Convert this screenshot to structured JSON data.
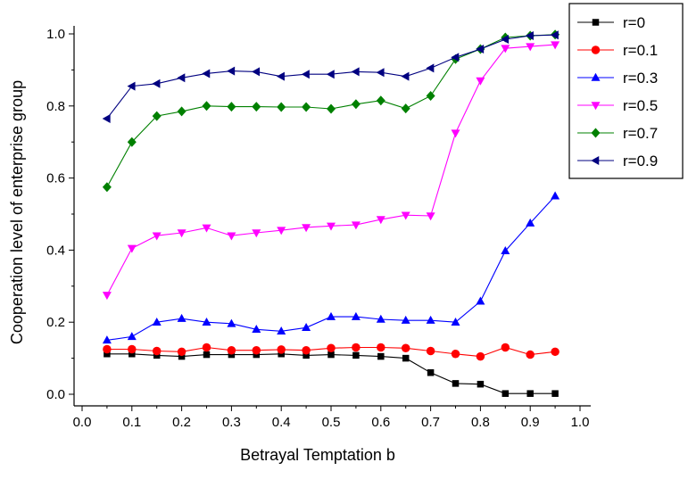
{
  "chart_data": {
    "type": "line",
    "title": "",
    "xlabel": "Betrayal Temptation b",
    "ylabel": "Cooperation level of enterprise group",
    "xlim": [
      0.0,
      1.0
    ],
    "ylim": [
      0.0,
      1.0
    ],
    "xticks": [
      "0.0",
      "0.1",
      "0.2",
      "0.3",
      "0.4",
      "0.5",
      "0.6",
      "0.7",
      "0.8",
      "0.9",
      "1.0"
    ],
    "yticks": [
      "0.0",
      "0.2",
      "0.4",
      "0.6",
      "0.8",
      "1.0"
    ],
    "grid": false,
    "legend_position": "top-right",
    "x": [
      0.05,
      0.1,
      0.15,
      0.2,
      0.25,
      0.3,
      0.35,
      0.4,
      0.45,
      0.5,
      0.55,
      0.6,
      0.65,
      0.7,
      0.75,
      0.8,
      0.85,
      0.9,
      0.95
    ],
    "series": [
      {
        "name": "r=0",
        "color": "#000000",
        "marker": "square",
        "values": [
          0.112,
          0.112,
          0.108,
          0.105,
          0.11,
          0.11,
          0.11,
          0.112,
          0.108,
          0.11,
          0.108,
          0.105,
          0.1,
          0.06,
          0.03,
          0.028,
          0.002,
          0.002,
          0.002
        ]
      },
      {
        "name": "r=0.1",
        "color": "#ff0000",
        "marker": "circle",
        "values": [
          0.125,
          0.125,
          0.12,
          0.118,
          0.13,
          0.122,
          0.122,
          0.124,
          0.122,
          0.128,
          0.13,
          0.13,
          0.128,
          0.12,
          0.112,
          0.105,
          0.13,
          0.11,
          0.118
        ]
      },
      {
        "name": "r=0.3",
        "color": "#0000ff",
        "marker": "triangle-up",
        "values": [
          0.15,
          0.16,
          0.2,
          0.21,
          0.2,
          0.196,
          0.18,
          0.175,
          0.185,
          0.215,
          0.215,
          0.208,
          0.205,
          0.205,
          0.2,
          0.258,
          0.398,
          0.475,
          0.55
        ]
      },
      {
        "name": "r=0.5",
        "color": "#ff00ff",
        "marker": "triangle-down",
        "values": [
          0.275,
          0.405,
          0.44,
          0.448,
          0.462,
          0.44,
          0.448,
          0.455,
          0.463,
          0.467,
          0.47,
          0.485,
          0.497,
          0.495,
          0.725,
          0.87,
          0.96,
          0.965,
          0.97
        ]
      },
      {
        "name": "r=0.7",
        "color": "#008000",
        "marker": "diamond",
        "values": [
          0.575,
          0.7,
          0.772,
          0.785,
          0.8,
          0.798,
          0.798,
          0.797,
          0.797,
          0.792,
          0.805,
          0.815,
          0.793,
          0.828,
          0.93,
          0.958,
          0.99,
          0.995,
          0.998
        ]
      },
      {
        "name": "r=0.9",
        "color": "#000080",
        "marker": "triangle-left",
        "values": [
          0.765,
          0.855,
          0.862,
          0.878,
          0.89,
          0.897,
          0.895,
          0.882,
          0.888,
          0.888,
          0.895,
          0.893,
          0.882,
          0.905,
          0.935,
          0.958,
          0.985,
          0.995,
          0.997
        ]
      }
    ]
  }
}
